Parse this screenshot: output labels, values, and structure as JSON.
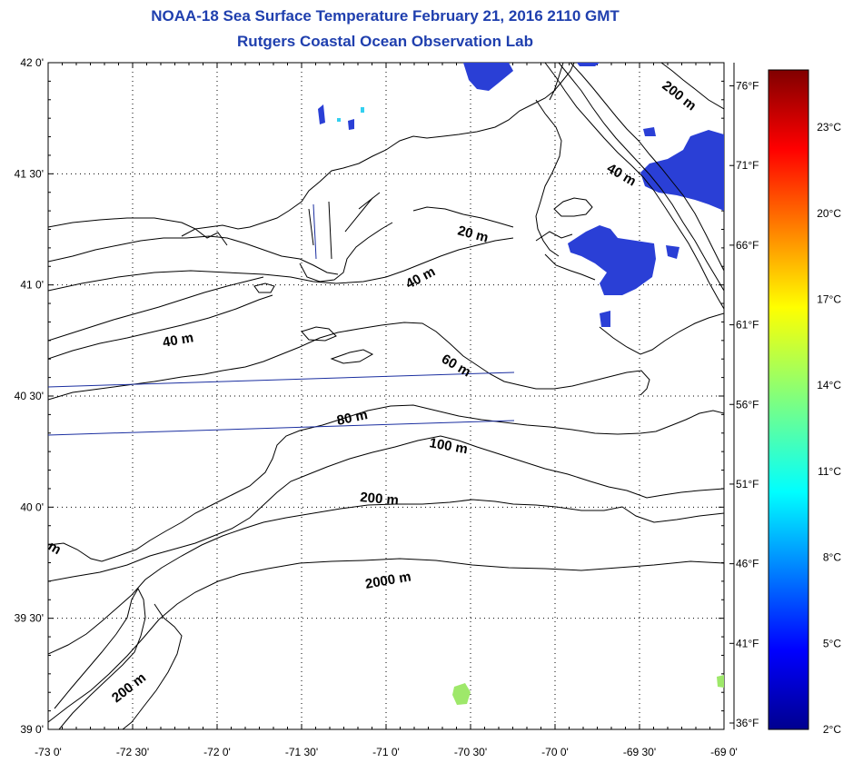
{
  "title": {
    "line1": "NOAA-18 Sea Surface Temperature February 21, 2016 2110 GMT",
    "line2": "Rutgers Coastal Ocean Observation Lab"
  },
  "colors": {
    "title": "#1f3fae",
    "cold_sst": "#2a3fd6",
    "warm_sst": "#9ee86a",
    "track": "#1a2ea0"
  },
  "map": {
    "lat_labels": [
      "42 0'",
      "41 30'",
      "41 0'",
      "40 30'",
      "40 0'",
      "39 30'",
      "39 0'"
    ],
    "lon_labels": [
      "-73 0'",
      "-72 30'",
      "-72 0'",
      "-71 30'",
      "-71 0'",
      "-70 30'",
      "-70 0'",
      "-69 30'",
      "-69 0'"
    ],
    "lon_range": [
      -73,
      -69
    ],
    "lat_range": [
      39,
      42
    ],
    "grid": "dotted",
    "contour_labels": [
      "200 m",
      "40 m",
      "20 m",
      "40 m",
      "40 m",
      "60 m",
      "80 m",
      "100 m",
      "200 m",
      "2000 m",
      "200 m",
      "m"
    ]
  },
  "colorbar": {
    "fahrenheit": [
      "76°F",
      "71°F",
      "66°F",
      "61°F",
      "56°F",
      "51°F",
      "46°F",
      "41°F",
      "36°F"
    ],
    "celsius": [
      "23°C",
      "20°C",
      "17°C",
      "14°C",
      "11°C",
      "8°C",
      "5°C",
      "2°C"
    ],
    "range_c": [
      2,
      25
    ],
    "colormap": "jet"
  }
}
